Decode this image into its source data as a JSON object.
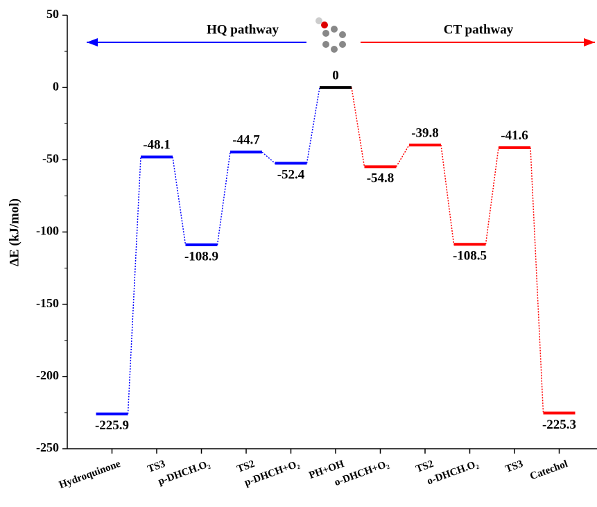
{
  "chart_data": {
    "type": "energy-level",
    "y_label": "ΔE (kJ/mol)",
    "categories": [
      "Hydroquinone",
      "TS3",
      "p-DHCH.O₂",
      "TS2",
      "p-DHCH+O₂",
      "PH+OH",
      "o-DHCH+O₂",
      "TS2",
      "o-DHCH.O₂",
      "TS3",
      "Catechol"
    ],
    "values": [
      -225.9,
      -48.1,
      -108.9,
      -44.7,
      -52.4,
      0,
      -54.8,
      -39.8,
      -108.5,
      -41.6,
      -225.3
    ],
    "colors": [
      "#0000ff",
      "#0000ff",
      "#0000ff",
      "#0000ff",
      "#0000ff",
      "#000000",
      "#ff0000",
      "#ff0000",
      "#ff0000",
      "#ff0000",
      "#ff0000"
    ],
    "pathways": [
      {
        "name": "HQ pathway",
        "color": "#0000ff",
        "direction": "left"
      },
      {
        "name": "CT pathway",
        "color": "#ff0000",
        "direction": "right"
      }
    ],
    "ylim": [
      -250,
      50
    ],
    "yticks": [
      -250,
      -200,
      -150,
      -100,
      -50,
      0,
      50
    ]
  }
}
